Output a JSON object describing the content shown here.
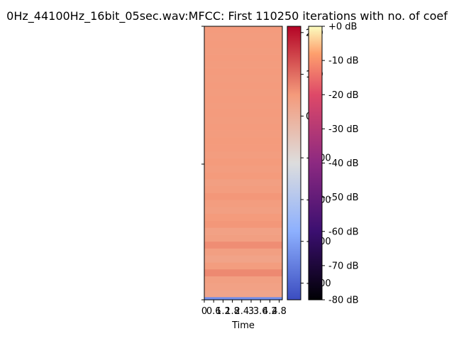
{
  "chart_data": {
    "type": "heatmap",
    "title": "0Hz_44100Hz_16bit_05sec.wav:MFCC: First 110250 iterations with no. of coef",
    "xlabel": "Time",
    "ylabel": "",
    "x_ticks": [
      "0",
      "0.6",
      "1.2",
      "1.8",
      "2.4",
      "3",
      "3.6",
      "4.2",
      "4.8"
    ],
    "x_tick_values": [
      0,
      0.6,
      1.2,
      1.8,
      2.4,
      3.0,
      3.6,
      4.2,
      4.8
    ],
    "xlim": [
      0,
      5
    ],
    "rows_bottom_to_top": [
      -330,
      25,
      35,
      40,
      70,
      45,
      30,
      40,
      65,
      40,
      35,
      55,
      50,
      40,
      45,
      55,
      45,
      40,
      50,
      45,
      50,
      45,
      48,
      50,
      47,
      48,
      46,
      48,
      47,
      48,
      47,
      48,
      47,
      48,
      47,
      48,
      47,
      48,
      47,
      48
    ],
    "colorbar_mfcc": {
      "ticks": [
        "200",
        "100",
        "0",
        "−100",
        "−200",
        "−300",
        "−400"
      ],
      "tick_values": [
        200,
        100,
        0,
        -100,
        -200,
        -300,
        -400
      ],
      "vmin": -440,
      "vmax": 215,
      "colormap": "coolwarm"
    },
    "colorbar_db": {
      "ticks": [
        "+0 dB",
        "-10 dB",
        "-20 dB",
        "-30 dB",
        "-40 dB",
        "-50 dB",
        "-60 dB",
        "-70 dB",
        "-80 dB"
      ],
      "tick_values": [
        0,
        -10,
        -20,
        -30,
        -40,
        -50,
        -60,
        -70,
        -80
      ],
      "vmin": -80,
      "vmax": 0,
      "colormap": "magma"
    }
  }
}
